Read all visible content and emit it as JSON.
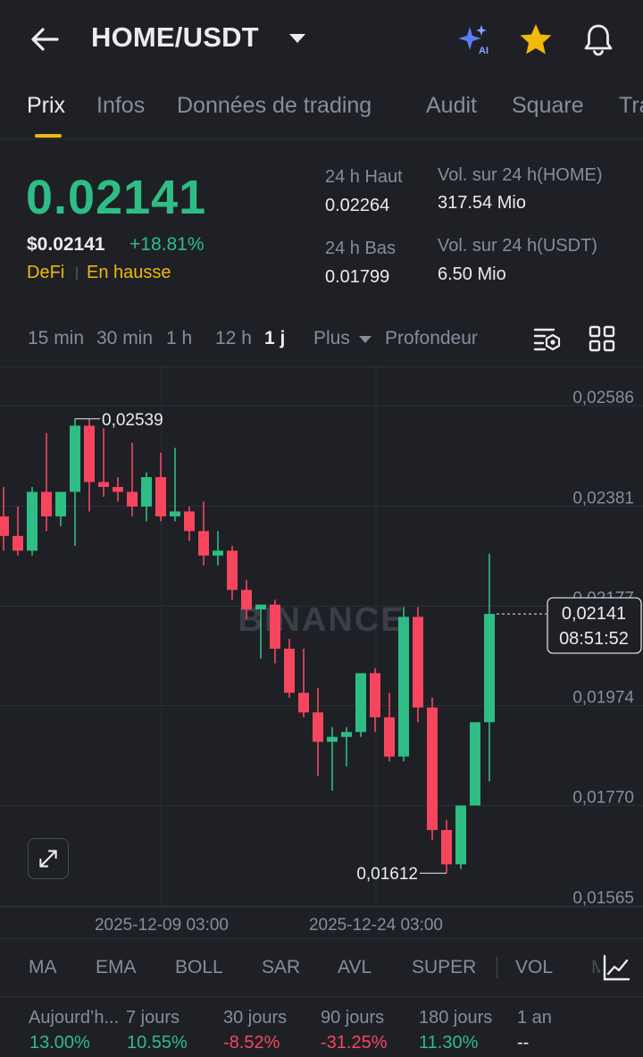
{
  "header": {
    "pair": "HOME/USDT",
    "icons": [
      "back-arrow-icon",
      "ai-sparkle-icon",
      "star-icon",
      "bell-icon"
    ],
    "star_color": "#f0b90b"
  },
  "tabs": [
    "Prix",
    "Infos",
    "Données de trading",
    "Audit",
    "Square",
    "Tra"
  ],
  "active_tab": "Prix",
  "price": {
    "last": "0.02141",
    "usd": "$0.02141",
    "change": "+18.81%",
    "tag1": "DeFi",
    "tag2": "En hausse",
    "high_label": "24 h Haut",
    "high_value": "0.02264",
    "low_label": "24 h Bas",
    "low_value": "0.01799",
    "vol_home_label": "Vol. sur 24 h(HOME)",
    "vol_home_value": "317.54 Mio",
    "vol_usdt_label": "Vol. sur 24 h(USDT)",
    "vol_usdt_value": "6.50 Mio"
  },
  "intervals": [
    "15 min",
    "30 min",
    "1 h",
    "12 h",
    "1 j",
    "Plus",
    "Profondeur"
  ],
  "active_interval": "1 j",
  "chart_data": {
    "type": "candlestick",
    "watermark": "BINANCE",
    "y_ticks": [
      "0,02586",
      "0,02381",
      "0,02177",
      "0,01974",
      "0,01770",
      "0,01565"
    ],
    "y_tick_values": [
      0.02586,
      0.02381,
      0.02177,
      0.01974,
      0.0177,
      0.01565
    ],
    "x_ticks": [
      "2025-12-09 03:00",
      "2025-12-24 03:00"
    ],
    "high_marker": "0,02539",
    "high_marker_value": 0.02539,
    "low_marker": "0,01612",
    "low_marker_value": 0.01612,
    "last_price_label": "0,02141",
    "countdown": "08:51:52",
    "up_color": "#2ebd85",
    "down_color": "#f6465d",
    "candles": [
      {
        "o": 0.0234,
        "h": 0.024,
        "l": 0.0227,
        "c": 0.023
      },
      {
        "o": 0.023,
        "h": 0.0236,
        "l": 0.0226,
        "c": 0.0227
      },
      {
        "o": 0.0227,
        "h": 0.024,
        "l": 0.0226,
        "c": 0.0239
      },
      {
        "o": 0.0239,
        "h": 0.0251,
        "l": 0.0231,
        "c": 0.0234
      },
      {
        "o": 0.0234,
        "h": 0.0239,
        "l": 0.0232,
        "c": 0.0239
      },
      {
        "o": 0.0239,
        "h": 0.02539,
        "l": 0.0228,
        "c": 0.02525
      },
      {
        "o": 0.02525,
        "h": 0.02539,
        "l": 0.0235,
        "c": 0.0241
      },
      {
        "o": 0.0241,
        "h": 0.0252,
        "l": 0.0238,
        "c": 0.024
      },
      {
        "o": 0.024,
        "h": 0.0242,
        "l": 0.0237,
        "c": 0.0239
      },
      {
        "o": 0.0239,
        "h": 0.0249,
        "l": 0.0234,
        "c": 0.0236
      },
      {
        "o": 0.0236,
        "h": 0.0243,
        "l": 0.0233,
        "c": 0.0242
      },
      {
        "o": 0.0242,
        "h": 0.0247,
        "l": 0.0233,
        "c": 0.0234
      },
      {
        "o": 0.0234,
        "h": 0.0248,
        "l": 0.0233,
        "c": 0.0235
      },
      {
        "o": 0.0235,
        "h": 0.0236,
        "l": 0.0229,
        "c": 0.0231
      },
      {
        "o": 0.0231,
        "h": 0.0237,
        "l": 0.0224,
        "c": 0.0226
      },
      {
        "o": 0.0226,
        "h": 0.0231,
        "l": 0.0224,
        "c": 0.0227
      },
      {
        "o": 0.0227,
        "h": 0.0228,
        "l": 0.0217,
        "c": 0.0219
      },
      {
        "o": 0.0219,
        "h": 0.0221,
        "l": 0.0213,
        "c": 0.0215
      },
      {
        "o": 0.0215,
        "h": 0.0216,
        "l": 0.0205,
        "c": 0.0216
      },
      {
        "o": 0.0216,
        "h": 0.0217,
        "l": 0.0204,
        "c": 0.0207
      },
      {
        "o": 0.0207,
        "h": 0.0209,
        "l": 0.0197,
        "c": 0.0198
      },
      {
        "o": 0.0198,
        "h": 0.0207,
        "l": 0.0193,
        "c": 0.0194
      },
      {
        "o": 0.0194,
        "h": 0.0199,
        "l": 0.0181,
        "c": 0.0188
      },
      {
        "o": 0.0188,
        "h": 0.0191,
        "l": 0.0178,
        "c": 0.0189
      },
      {
        "o": 0.0189,
        "h": 0.0191,
        "l": 0.0183,
        "c": 0.019
      },
      {
        "o": 0.019,
        "h": 0.0202,
        "l": 0.0189,
        "c": 0.0202
      },
      {
        "o": 0.0202,
        "h": 0.0203,
        "l": 0.019,
        "c": 0.0193
      },
      {
        "o": 0.0193,
        "h": 0.0198,
        "l": 0.0184,
        "c": 0.0185
      },
      {
        "o": 0.0185,
        "h": 0.02155,
        "l": 0.0184,
        "c": 0.02135
      },
      {
        "o": 0.02135,
        "h": 0.02155,
        "l": 0.0192,
        "c": 0.0195
      },
      {
        "o": 0.0195,
        "h": 0.0197,
        "l": 0.0168,
        "c": 0.017
      },
      {
        "o": 0.017,
        "h": 0.0172,
        "l": 0.01612,
        "c": 0.0163
      },
      {
        "o": 0.0163,
        "h": 0.0175,
        "l": 0.0162,
        "c": 0.0175
      },
      {
        "o": 0.0175,
        "h": 0.0192,
        "l": 0.0175,
        "c": 0.0192
      },
      {
        "o": 0.0192,
        "h": 0.02264,
        "l": 0.01799,
        "c": 0.02141
      }
    ]
  },
  "indicators": [
    "MA",
    "EMA",
    "BOLL",
    "SAR",
    "AVL",
    "SUPER",
    "VOL",
    "M"
  ],
  "performance": [
    {
      "label": "Aujourd’h...",
      "value": "13.00%",
      "trend": "up"
    },
    {
      "label": "7 jours",
      "value": "10.55%",
      "trend": "up"
    },
    {
      "label": "30 jours",
      "value": "-8.52%",
      "trend": "down"
    },
    {
      "label": "90 jours",
      "value": "-31.25%",
      "trend": "down"
    },
    {
      "label": "180 jours",
      "value": "11.30%",
      "trend": "up"
    },
    {
      "label": "1 an",
      "value": "--",
      "trend": "neutral"
    }
  ]
}
